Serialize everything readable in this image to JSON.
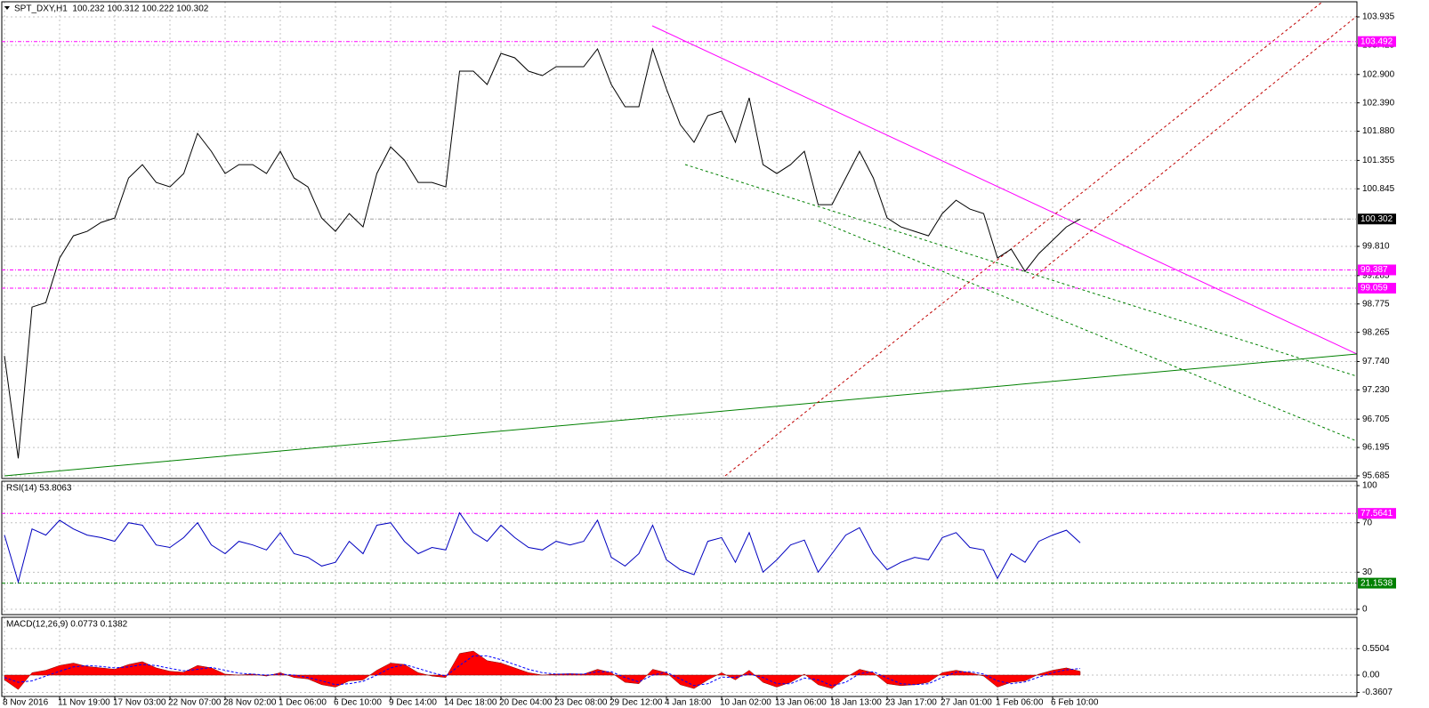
{
  "chart_data": [
    {
      "type": "line",
      "title": "SPT_DXY,H1  100.232 100.312 100.222 100.302",
      "color": "#000000",
      "values": [
        97.84,
        96.0,
        98.72,
        98.8,
        99.6,
        100.0,
        100.08,
        100.24,
        100.32,
        101.04,
        101.28,
        100.96,
        100.88,
        101.12,
        101.84,
        101.52,
        101.12,
        101.28,
        101.28,
        101.12,
        101.52,
        101.04,
        100.88,
        100.32,
        100.08,
        100.4,
        100.16,
        101.12,
        101.6,
        101.36,
        100.96,
        100.96,
        100.88,
        102.96,
        102.96,
        102.72,
        103.28,
        103.2,
        102.96,
        102.88,
        103.04,
        103.04,
        103.04,
        103.36,
        102.72,
        102.32,
        102.32,
        103.36,
        102.64,
        102.0,
        101.68,
        102.16,
        102.24,
        101.68,
        102.48,
        101.28,
        101.12,
        101.28,
        101.52,
        100.56,
        100.56,
        101.04,
        101.52,
        101.04,
        100.32,
        100.16,
        100.08,
        100.0,
        100.4,
        100.64,
        100.48,
        100.4,
        99.6,
        99.76,
        99.36,
        99.68,
        99.92,
        100.16,
        100.302
      ],
      "ylim": [
        95.637,
        104.207
      ],
      "yticks": [
        103.935,
        103.425,
        {
          "value": 102.9,
          "label": "102.900"
        },
        {
          "value": 102.39,
          "label": "102.390"
        },
        {
          "value": 101.88,
          "label": "101.880"
        },
        101.355,
        100.845,
        {
          "value": 99.81,
          "label": "99.810"
        },
        99.285,
        98.775,
        98.265,
        {
          "value": 97.74,
          "label": "97.740"
        },
        {
          "value": 97.23,
          "label": "97.230"
        },
        96.705,
        96.195,
        95.685
      ],
      "grid": true,
      "hlines": [
        {
          "value": 103.492,
          "color": "#ff00ff",
          "label_color": "#ff00ff"
        },
        {
          "value": 99.387,
          "color": "#ff00ff",
          "label_color": "#ff00ff"
        },
        {
          "value": 99.059,
          "color": "#ff00ff",
          "label_color": "#ff00ff"
        },
        {
          "value": 100.302,
          "color": "#a0a0a0",
          "label_color": "#000000"
        }
      ]
    },
    {
      "type": "line",
      "title": "RSI(14) 53.8063",
      "color": "#0000c0",
      "values": [
        60,
        22,
        65,
        60,
        72,
        65,
        60,
        58,
        55,
        70,
        68,
        52,
        50,
        58,
        70,
        52,
        45,
        55,
        52,
        48,
        62,
        45,
        42,
        35,
        38,
        55,
        45,
        68,
        70,
        55,
        45,
        50,
        48,
        78,
        62,
        55,
        68,
        58,
        50,
        48,
        55,
        52,
        55,
        72,
        42,
        35,
        45,
        68,
        40,
        32,
        28,
        55,
        58,
        38,
        62,
        30,
        40,
        52,
        56,
        30,
        45,
        60,
        66,
        45,
        32,
        38,
        42,
        40,
        58,
        62,
        50,
        48,
        25,
        45,
        38,
        55,
        60,
        64,
        53.8063
      ],
      "ylim": [
        -4.3,
        103.6
      ],
      "yticks": [
        100,
        70,
        30,
        0
      ],
      "grid": true,
      "hlines": [
        {
          "value": 77.5641,
          "color": "#ff00ff",
          "label_color": "#ff00ff"
        },
        {
          "value": 21.1538,
          "color": "#008000",
          "label_color": "#008000"
        }
      ]
    },
    {
      "type": "macd",
      "title": "MACD(12,26,9) 0.0773 0.1382",
      "categories": [
        "8 Nov 2016",
        null,
        null,
        null,
        "11 Nov 19:00",
        null,
        null,
        null,
        "17 Nov 03:00",
        null,
        null,
        null,
        "22 Nov 07:00",
        null,
        null,
        null,
        "28 Nov 02:00",
        null,
        null,
        null,
        "1 Dec 06:00",
        null,
        null,
        null,
        "6 Dec 10:00",
        null,
        null,
        null,
        "9 Dec 14:00",
        null,
        null,
        null,
        "14 Dec 18:00",
        null,
        null,
        null,
        "20 Dec 04:00",
        null,
        null,
        null,
        "23 Dec 08:00",
        null,
        null,
        null,
        "29 Dec 12:00",
        null,
        null,
        null,
        "4 Jan 18:00",
        null,
        null,
        null,
        "10 Jan 02:00",
        null,
        null,
        null,
        "13 Jan 06:00",
        null,
        null,
        null,
        "18 Jan 13:00",
        null,
        null,
        null,
        "23 Jan 17:00",
        null,
        null,
        null,
        "27 Jan 01:00",
        null,
        null,
        null,
        "1 Feb 06:00",
        null,
        null,
        null,
        "6 Feb 10:00",
        null,
        null
      ],
      "series": [
        {
          "color": "#ff0000",
          "style": "area",
          "values": [
            -0.1,
            -0.3,
            0.05,
            0.1,
            0.2,
            0.25,
            0.18,
            0.15,
            0.12,
            0.22,
            0.28,
            0.15,
            0.08,
            0.06,
            0.2,
            0.15,
            0.02,
            0.0,
            0.02,
            -0.02,
            0.05,
            -0.05,
            -0.08,
            -0.2,
            -0.25,
            -0.12,
            -0.1,
            0.1,
            0.25,
            0.22,
            0.05,
            -0.02,
            -0.05,
            0.45,
            0.5,
            0.3,
            0.25,
            0.15,
            0.05,
            0.0,
            0.02,
            0.03,
            0.02,
            0.12,
            0.05,
            -0.15,
            -0.18,
            0.12,
            0.05,
            -0.2,
            -0.28,
            -0.1,
            0.05,
            -0.1,
            0.1,
            -0.15,
            -0.25,
            -0.15,
            0.02,
            -0.2,
            -0.28,
            -0.05,
            0.12,
            0.05,
            -0.18,
            -0.22,
            -0.2,
            -0.15,
            0.05,
            0.1,
            0.05,
            -0.02,
            -0.25,
            -0.15,
            -0.12,
            0.02,
            0.1,
            0.15,
            0.0773
          ]
        },
        {
          "color": "#0000ff",
          "style": "dashed",
          "values": [
            -0.05,
            -0.15,
            -0.12,
            -0.02,
            0.08,
            0.17,
            0.2,
            0.18,
            0.15,
            0.17,
            0.22,
            0.2,
            0.14,
            0.09,
            0.12,
            0.16,
            0.1,
            0.04,
            0.02,
            0.0,
            0.02,
            0.0,
            -0.05,
            -0.12,
            -0.2,
            -0.18,
            -0.13,
            0.0,
            0.15,
            0.22,
            0.14,
            0.05,
            -0.02,
            0.2,
            0.4,
            0.4,
            0.32,
            0.22,
            0.12,
            0.05,
            0.02,
            0.02,
            0.02,
            0.07,
            0.07,
            -0.05,
            -0.14,
            0.0,
            0.06,
            -0.08,
            -0.22,
            -0.18,
            -0.04,
            -0.05,
            0.02,
            -0.05,
            -0.18,
            -0.18,
            -0.06,
            -0.1,
            -0.22,
            -0.15,
            0.03,
            0.07,
            -0.06,
            -0.18,
            -0.2,
            -0.18,
            -0.05,
            0.06,
            0.07,
            0.02,
            -0.12,
            -0.18,
            -0.14,
            -0.04,
            0.05,
            0.11,
            0.1382
          ]
        }
      ],
      "ylim": [
        -0.444,
        1.204
      ],
      "yticks": [
        0.5504,
        {
          "value": 0,
          "label": "0.00"
        },
        -0.3607
      ],
      "grid": true
    }
  ]
}
